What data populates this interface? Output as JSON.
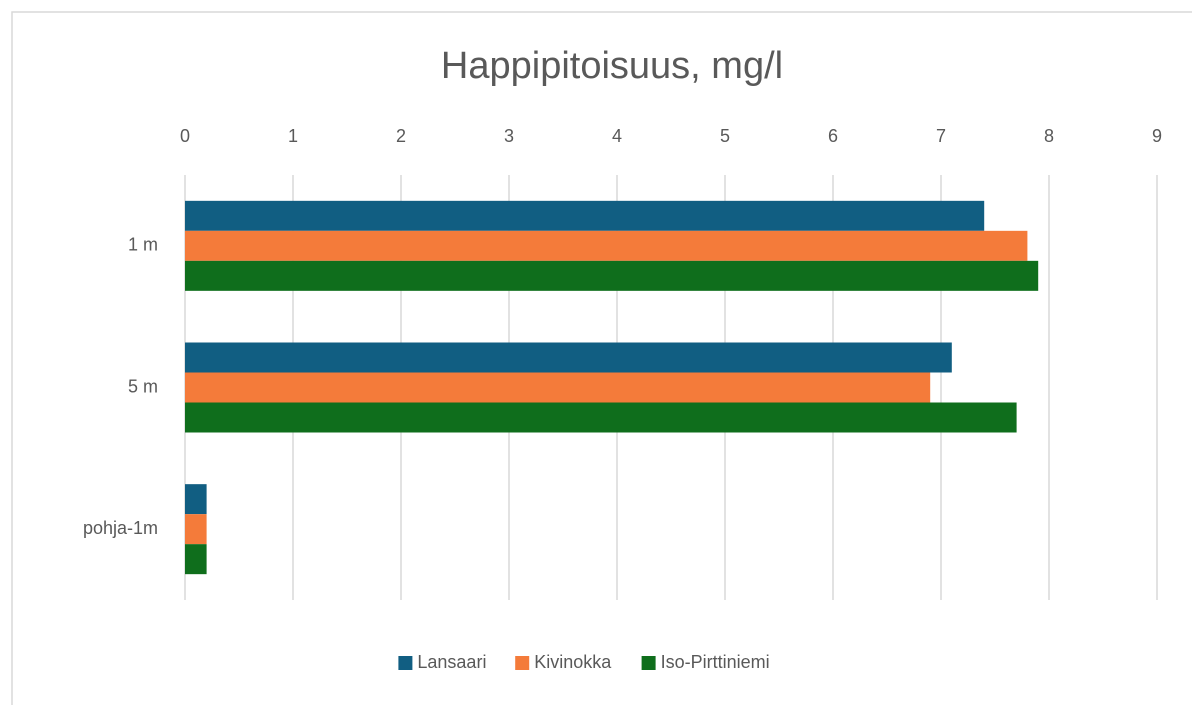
{
  "chart_data": {
    "type": "bar",
    "orientation": "horizontal",
    "title": "Happipitoisuus, mg/l",
    "categories": [
      "1 m",
      "5 m",
      "pohja-1m"
    ],
    "series": [
      {
        "name": "Lansaari",
        "color": "#115e82",
        "values": [
          7.4,
          7.1,
          0.2
        ]
      },
      {
        "name": "Kivinokka",
        "color": "#f47b3a",
        "values": [
          7.8,
          6.9,
          0.2
        ]
      },
      {
        "name": "Iso-Pirttiniemi",
        "color": "#0f6e1c",
        "values": [
          7.9,
          7.7,
          0.2
        ]
      }
    ],
    "xlim": [
      0,
      9
    ],
    "xticks": [
      0,
      1,
      2,
      3,
      4,
      5,
      6,
      7,
      8,
      9
    ],
    "grid": true,
    "legend": "bottom"
  }
}
